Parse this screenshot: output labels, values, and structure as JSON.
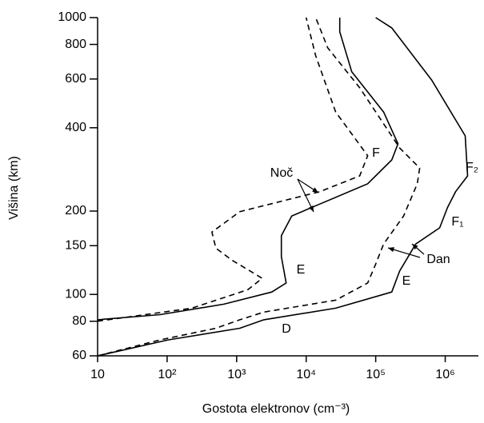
{
  "chart_data": {
    "type": "line",
    "xlabel": "Gostota elektronov (cm⁻³)",
    "ylabel": "Višina (km)",
    "xscale": "log",
    "yscale": "log",
    "xlim": [
      10,
      3000000
    ],
    "ylim": [
      60,
      1000
    ],
    "xticks": [
      10,
      {
        "value": 100,
        "label": "10²"
      },
      {
        "value": 1000,
        "label": "10³"
      },
      {
        "value": 10000,
        "label": "10⁴"
      },
      {
        "value": 100000,
        "label": "10⁵"
      },
      {
        "value": 1000000,
        "label": "10⁶"
      }
    ],
    "yticks": [
      60,
      80,
      100,
      150,
      200,
      400,
      600,
      800,
      1000
    ],
    "series": [
      {
        "color": "#000000",
        "dashed": false,
        "x": [
          10,
          79,
          655,
          3200,
          5160,
          4400,
          4400,
          6200,
          15700,
          76700,
          170000,
          209000,
          130000,
          45200,
          30400,
          30400
        ],
        "values": [
          81,
          84.5,
          92.2,
          102,
          110,
          137,
          163,
          192,
          212,
          251,
          306,
          350,
          456,
          637,
          889,
          1000
        ]
      },
      {
        "color": "#000000",
        "dashed": true,
        "x": [
          10,
          227,
          1450,
          2330,
          1790,
          853,
          502,
          441,
          1110,
          15700,
          58900,
          76700,
          26600,
          13700,
          10000
        ],
        "values": [
          80,
          89.2,
          104,
          114.3,
          119,
          133,
          147,
          168,
          199,
          235,
          268,
          317,
          456,
          728,
          1000
        ]
      },
      {
        "color": "#000000",
        "dashed": true,
        "x": [
          10,
          79,
          502,
          1110,
          2460,
          26600,
          76700,
          100000,
          130000,
          252000,
          396000,
          429000,
          221000,
          58900,
          20400,
          13700
        ],
        "values": [
          60,
          68.5,
          75.5,
          81,
          86.3,
          95.3,
          110,
          128.7,
          152,
          192,
          251,
          286,
          338,
          558,
          778,
          1000
        ]
      },
      {
        "color": "#000000",
        "dashed": false,
        "x": [
          10,
          103,
          1110,
          2460,
          26600,
          170000,
          221000,
          376000,
          832000,
          1080000,
          1410000,
          2100000,
          1940000,
          638000,
          170000,
          100000
        ],
        "values": [
          60,
          68.5,
          75.5,
          81,
          89.2,
          102,
          121.5,
          152,
          174,
          206,
          235,
          268,
          374,
          595,
          918,
          1000
        ]
      }
    ],
    "annotations": [
      "F",
      "E",
      "D",
      "F₂",
      "F₁",
      "E",
      "Noč",
      "Dan"
    ]
  }
}
